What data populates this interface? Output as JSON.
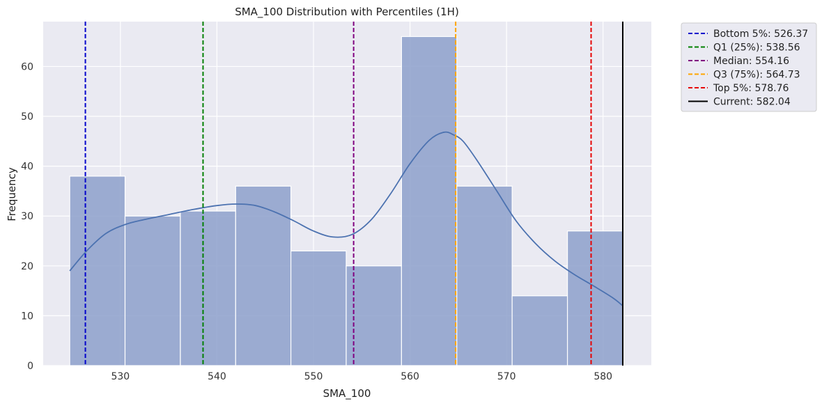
{
  "chart_data": {
    "type": "histogram",
    "title": "SMA_100 Distribution with Percentiles (1H)",
    "xlabel": "SMA_100",
    "ylabel": "Frequency",
    "xlim": [
      522,
      585
    ],
    "ylim": [
      0,
      69
    ],
    "xticks": [
      530,
      540,
      550,
      560,
      570,
      580
    ],
    "yticks": [
      0,
      10,
      20,
      30,
      40,
      50,
      60
    ],
    "grid": true,
    "bar_color": "#8da0cb",
    "kde_color": "#4c72b0",
    "bins": [
      {
        "x0": 524.75,
        "x1": 530.48,
        "count": 38
      },
      {
        "x0": 530.48,
        "x1": 536.21,
        "count": 30
      },
      {
        "x0": 536.21,
        "x1": 541.94,
        "count": 31
      },
      {
        "x0": 541.94,
        "x1": 547.66,
        "count": 36
      },
      {
        "x0": 547.66,
        "x1": 553.39,
        "count": 23
      },
      {
        "x0": 553.39,
        "x1": 559.12,
        "count": 20
      },
      {
        "x0": 559.12,
        "x1": 564.85,
        "count": 66
      },
      {
        "x0": 564.85,
        "x1": 570.58,
        "count": 36
      },
      {
        "x0": 570.58,
        "x1": 576.31,
        "count": 14
      },
      {
        "x0": 576.31,
        "x1": 582.04,
        "count": 27
      }
    ],
    "kde": {
      "x": [
        524.75,
        526.5,
        528.5,
        530.5,
        532.5,
        535,
        537.5,
        540,
        542,
        544,
        546,
        548,
        550,
        552,
        554,
        556,
        558,
        560,
        562,
        563.5,
        564.5,
        565.5,
        567,
        569,
        571,
        573,
        575,
        577,
        579,
        581,
        582.04
      ],
      "y": [
        19,
        23,
        26.5,
        28.3,
        29.3,
        30.3,
        31.3,
        32.1,
        32.4,
        32.1,
        30.8,
        29,
        27,
        25.8,
        26.3,
        29.3,
        34.5,
        40.5,
        45.2,
        46.8,
        46.3,
        45,
        41,
        35,
        29,
        24.5,
        21,
        18.3,
        16,
        13.6,
        12
      ]
    },
    "vlines": [
      {
        "label": "Bottom 5%: 526.37",
        "value": 526.37,
        "color": "#0000cc",
        "style": "dashed"
      },
      {
        "label": "Q1 (25%): 538.56",
        "value": 538.56,
        "color": "#008000",
        "style": "dashed"
      },
      {
        "label": "Median: 554.16",
        "value": 554.16,
        "color": "#800080",
        "style": "dashed"
      },
      {
        "label": "Q3 (75%): 564.73",
        "value": 564.73,
        "color": "#ffa500",
        "style": "dashed"
      },
      {
        "label": "Top 5%: 578.76",
        "value": 578.76,
        "color": "#e60000",
        "style": "dashed"
      },
      {
        "label": "Current: 582.04",
        "value": 582.04,
        "color": "#000000",
        "style": "solid"
      }
    ],
    "legend_position": "outside-top-right"
  }
}
